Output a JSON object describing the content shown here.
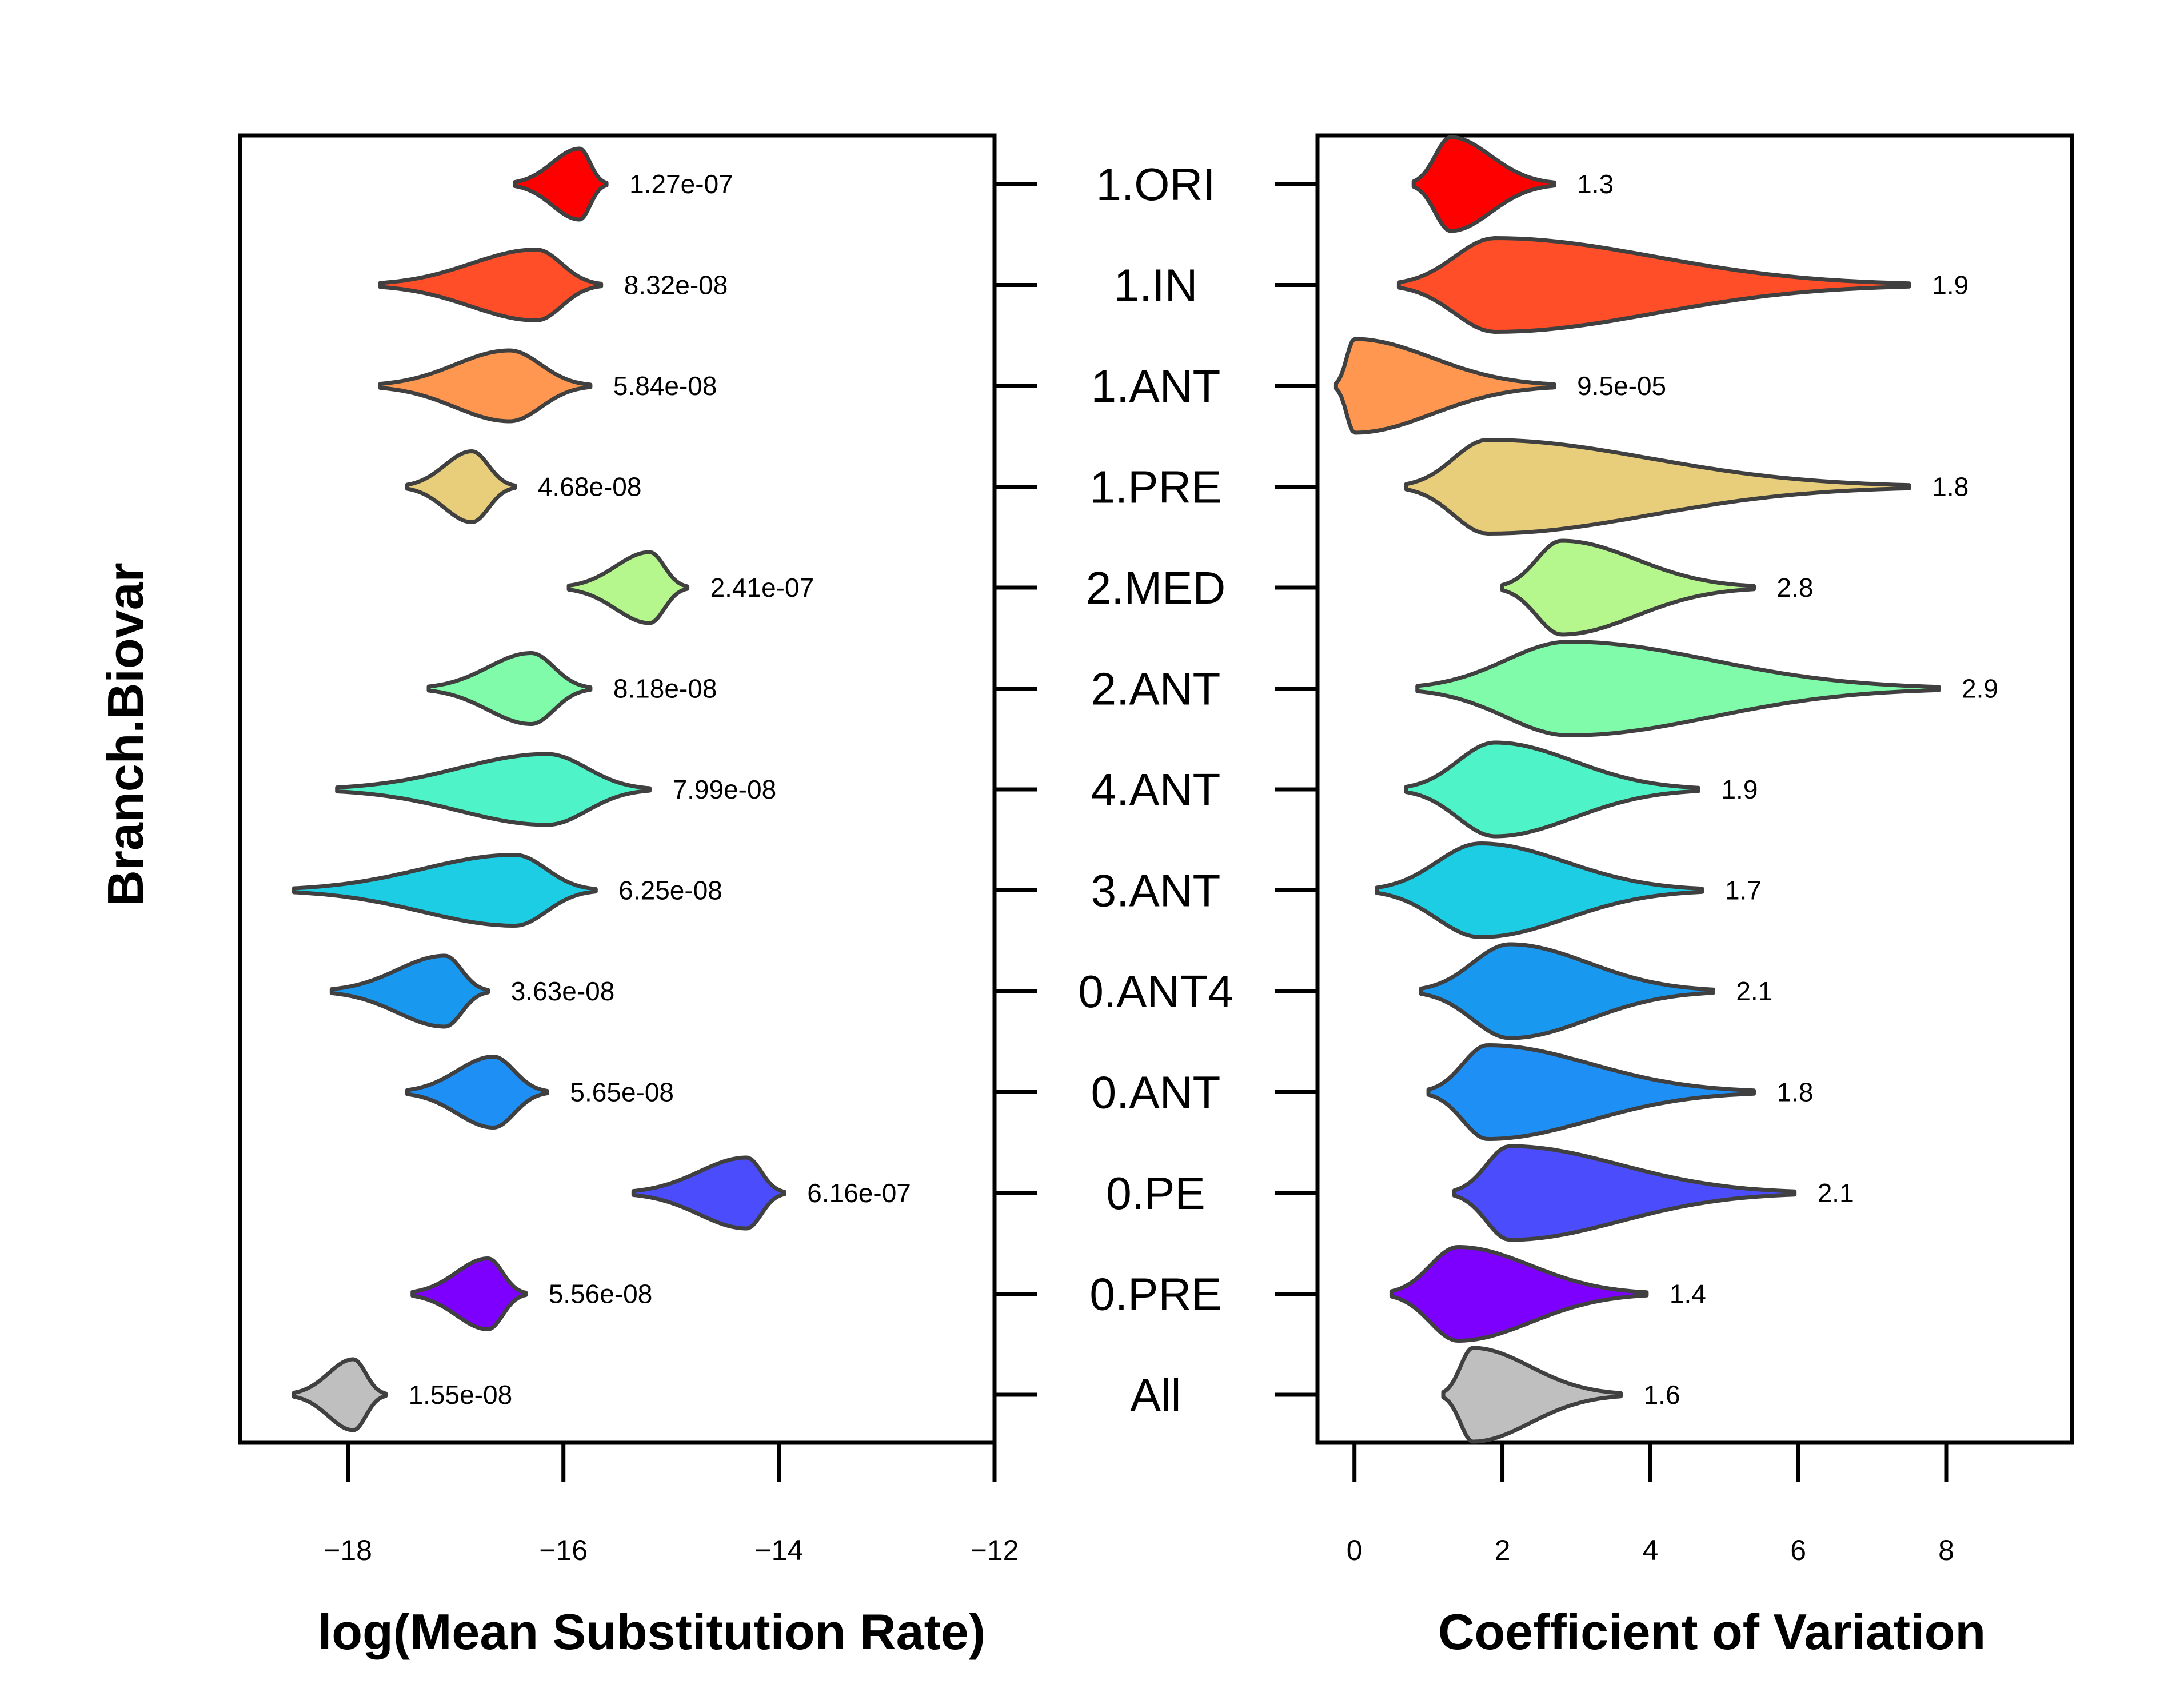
{
  "y_axis_title": "Branch.Biovar",
  "categories": [
    "1.ORI",
    "1.IN",
    "1.ANT",
    "1.PRE",
    "2.MED",
    "2.ANT",
    "4.ANT",
    "3.ANT",
    "0.ANT4",
    "0.ANT",
    "0.PE",
    "0.PRE",
    "All"
  ],
  "colors": [
    "#ff0000",
    "#ff4e28",
    "#ff9750",
    "#e8ce7a",
    "#b5f78c",
    "#80fbaa",
    "#4ef4c8",
    "#1dcde4",
    "#1998f0",
    "#1e8ff4",
    "#4b4cfc",
    "#7d00ff",
    "#bfbfbf"
  ],
  "chart_data": [
    {
      "type": "violin",
      "orientation": "horizontal",
      "xlabel": "log(Mean Substitution Rate)",
      "xlim": [
        -19,
        -12
      ],
      "xticks": [
        -18,
        -16,
        -14,
        -12
      ],
      "xtick_labels": [
        "−18",
        "−16",
        "−14",
        "−12"
      ],
      "series": [
        {
          "category": "1.ORI",
          "min": -16.45,
          "max": -15.6,
          "mode": -15.85,
          "value_label": "1.27e-07"
        },
        {
          "category": "1.IN",
          "min": -17.7,
          "max": -15.65,
          "mode": -16.25,
          "value_label": "8.32e-08"
        },
        {
          "category": "1.ANT",
          "min": -17.7,
          "max": -15.75,
          "mode": -16.5,
          "value_label": "5.84e-08"
        },
        {
          "category": "1.PRE",
          "min": -17.45,
          "max": -16.45,
          "mode": -16.85,
          "value_label": "4.68e-08"
        },
        {
          "category": "2.MED",
          "min": -15.95,
          "max": -14.85,
          "mode": -15.2,
          "value_label": "2.41e-07"
        },
        {
          "category": "2.ANT",
          "min": -17.25,
          "max": -15.75,
          "mode": -16.3,
          "value_label": "8.18e-08"
        },
        {
          "category": "4.ANT",
          "min": -18.1,
          "max": -15.2,
          "mode": -16.15,
          "value_label": "7.99e-08"
        },
        {
          "category": "3.ANT",
          "min": -18.5,
          "max": -15.7,
          "mode": -16.45,
          "value_label": "6.25e-08"
        },
        {
          "category": "0.ANT4",
          "min": -18.15,
          "max": -16.7,
          "mode": -17.1,
          "value_label": "3.63e-08"
        },
        {
          "category": "0.ANT",
          "min": -17.45,
          "max": -16.15,
          "mode": -16.65,
          "value_label": "5.65e-08"
        },
        {
          "category": "0.PE",
          "min": -15.35,
          "max": -13.95,
          "mode": -14.3,
          "value_label": "6.16e-07"
        },
        {
          "category": "0.PRE",
          "min": -17.4,
          "max": -16.35,
          "mode": -16.7,
          "value_label": "5.56e-08"
        },
        {
          "category": "All",
          "min": -18.5,
          "max": -17.65,
          "mode": -17.95,
          "value_label": "1.55e-08"
        }
      ]
    },
    {
      "type": "violin",
      "orientation": "horizontal",
      "xlabel": "Coefficient of Variation",
      "xlim": [
        -0.5,
        9.7
      ],
      "xticks": [
        0,
        2,
        4,
        6,
        8
      ],
      "xtick_labels": [
        "0",
        "2",
        "4",
        "6",
        "8"
      ],
      "series": [
        {
          "category": "1.ORI",
          "min": 0.8,
          "max": 2.7,
          "mode": 1.3,
          "value_label": "1.3"
        },
        {
          "category": "1.IN",
          "min": 0.6,
          "max": 7.5,
          "mode": 1.9,
          "value_label": "1.9"
        },
        {
          "category": "1.ANT",
          "min": -0.25,
          "max": 2.7,
          "mode": 0.0,
          "value_label": "9.5e-05"
        },
        {
          "category": "1.PRE",
          "min": 0.7,
          "max": 7.5,
          "mode": 1.8,
          "value_label": "1.8"
        },
        {
          "category": "2.MED",
          "min": 2.0,
          "max": 5.4,
          "mode": 2.8,
          "value_label": "2.8"
        },
        {
          "category": "2.ANT",
          "min": 0.85,
          "max": 7.9,
          "mode": 2.9,
          "value_label": "2.9"
        },
        {
          "category": "4.ANT",
          "min": 0.7,
          "max": 4.65,
          "mode": 1.9,
          "value_label": "1.9"
        },
        {
          "category": "3.ANT",
          "min": 0.3,
          "max": 4.7,
          "mode": 1.7,
          "value_label": "1.7"
        },
        {
          "category": "0.ANT4",
          "min": 0.9,
          "max": 4.85,
          "mode": 2.1,
          "value_label": "2.1"
        },
        {
          "category": "0.ANT",
          "min": 1.0,
          "max": 5.4,
          "mode": 1.8,
          "value_label": "1.8"
        },
        {
          "category": "0.PE",
          "min": 1.35,
          "max": 5.95,
          "mode": 2.1,
          "value_label": "2.1"
        },
        {
          "category": "0.PRE",
          "min": 0.5,
          "max": 3.95,
          "mode": 1.4,
          "value_label": "1.4"
        },
        {
          "category": "All",
          "min": 1.2,
          "max": 3.6,
          "mode": 1.6,
          "value_label": "1.6"
        }
      ]
    }
  ]
}
